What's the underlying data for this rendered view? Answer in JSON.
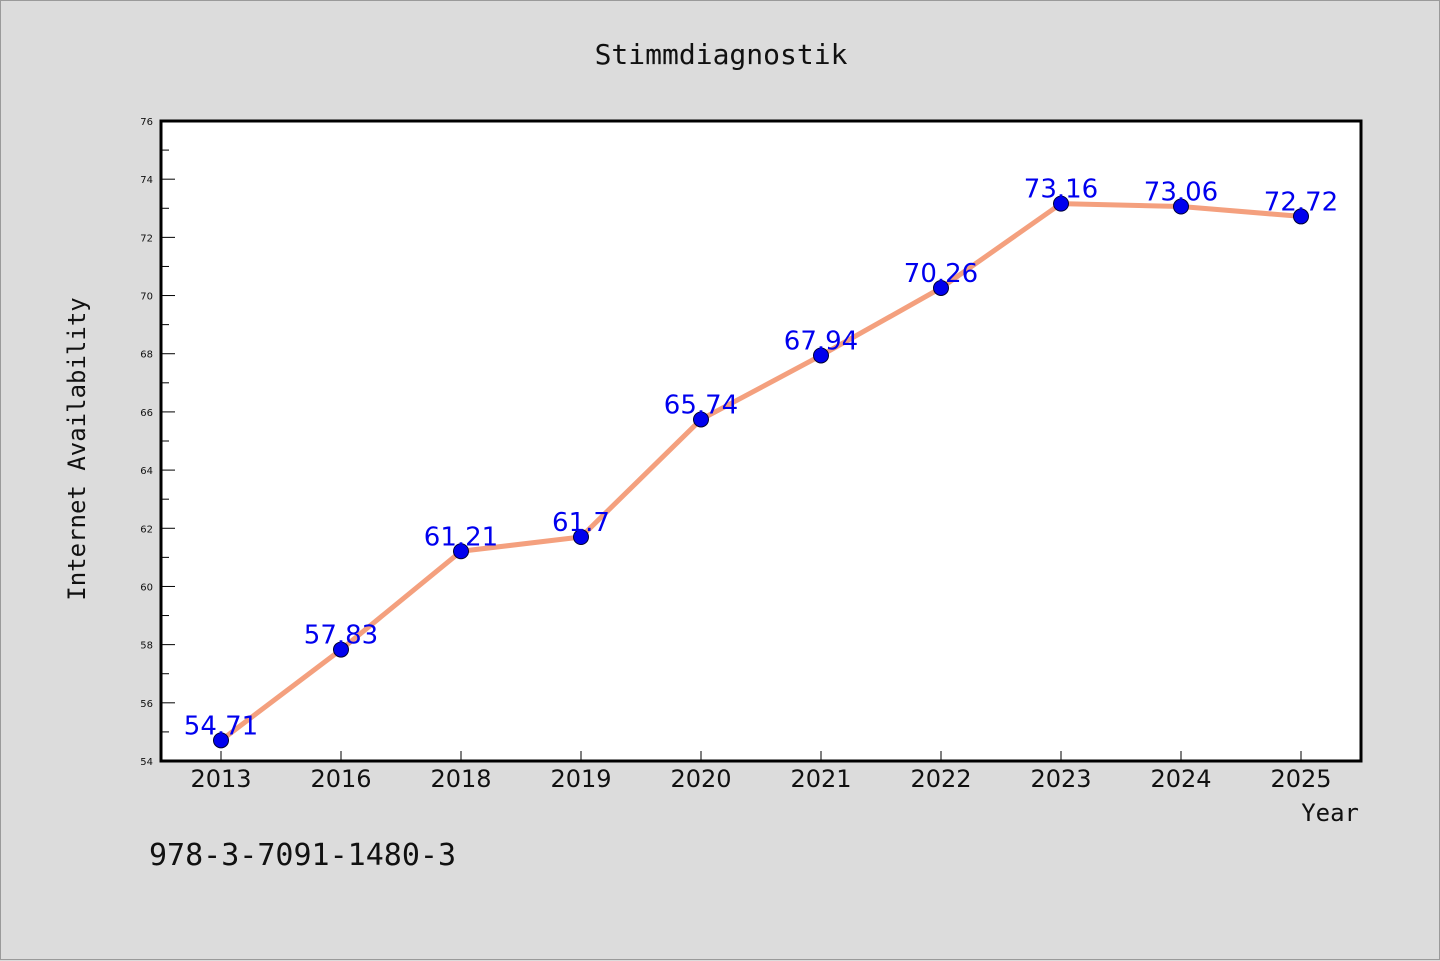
{
  "chart_data": {
    "type": "line",
    "title": "Stimmdiagnostik",
    "xlabel": "Year",
    "ylabel": "Internet Availability",
    "categories": [
      "2013",
      "2016",
      "2018",
      "2019",
      "2020",
      "2021",
      "2022",
      "2023",
      "2024",
      "2025"
    ],
    "series": [
      {
        "values": [
          54.71,
          57.83,
          61.21,
          61.7,
          65.74,
          67.94,
          70.26,
          73.16,
          73.06,
          72.72
        ],
        "data_labels": [
          "54.71",
          "57.83",
          "61.21",
          "61.7",
          "65.74",
          "67.94",
          "70.26",
          "73.16",
          "73.06",
          "72.72"
        ],
        "line_color": "#f4a07e",
        "marker_color": "#0000ee"
      }
    ],
    "ylim": [
      54,
      76
    ],
    "yticks": [
      "54",
      "56",
      "58",
      "60",
      "62",
      "64",
      "66",
      "68",
      "70",
      "72",
      "74",
      "76"
    ],
    "grid": false,
    "legend": "none"
  },
  "footer": {
    "isbn": "978-3-7091-1480-3"
  },
  "colors": {
    "background": "#dcdcdc",
    "plot_background": "#ffffff",
    "line": "#f4a07e",
    "marker": "#0000ee",
    "data_label": "#0000ee"
  }
}
